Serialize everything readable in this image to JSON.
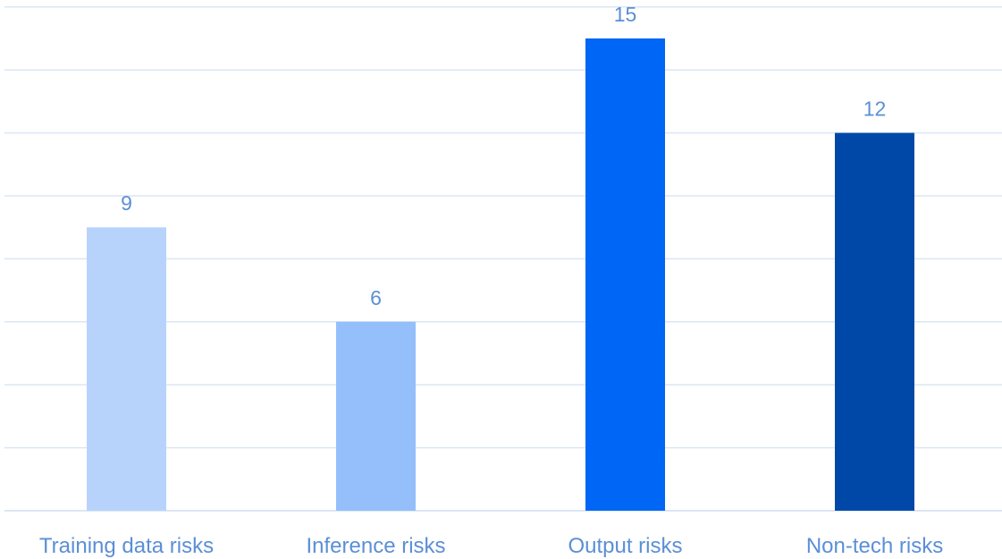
{
  "chart_data": {
    "type": "bar",
    "categories": [
      "Training data risks",
      "Inference risks",
      "Output risks",
      "Non-tech risks"
    ],
    "values": [
      9,
      6,
      15,
      12
    ],
    "colors": [
      "#b8d3fb",
      "#94bffb",
      "#0066f5",
      "#0048a8"
    ],
    "gridline_color": "#dbe6f4",
    "label_color": "#5b8fd6",
    "ylim": [
      0,
      16
    ],
    "grid": true,
    "gridline_step": 2,
    "data_labels": true,
    "legend": "none"
  }
}
